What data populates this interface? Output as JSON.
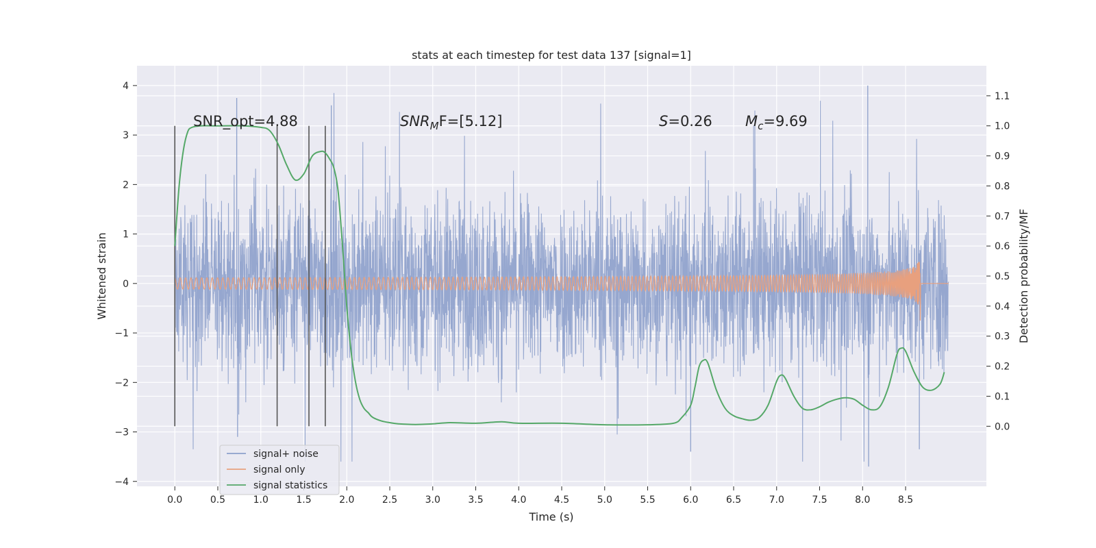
{
  "chart_data": {
    "type": "line",
    "title": "stats at each timestep for test data 137 [signal=1]",
    "xlabel": "Time (s)",
    "ylabel_left": "Whitened strain",
    "ylabel_right": "Detection probability/MF",
    "xlim": [
      -0.44,
      9.44
    ],
    "ylim_left": [
      -4.1,
      4.4
    ],
    "ylim_right": [
      -0.2,
      1.2
    ],
    "xticks": [
      0.0,
      0.5,
      1.0,
      1.5,
      2.0,
      2.5,
      3.0,
      3.5,
      4.0,
      4.5,
      5.0,
      5.5,
      6.0,
      6.5,
      7.0,
      7.5,
      8.0,
      8.5
    ],
    "xtick_labels": [
      "0.0",
      "0.5",
      "1.0",
      "1.5",
      "2.0",
      "2.5",
      "3.0",
      "3.5",
      "4.0",
      "4.5",
      "5.0",
      "5.5",
      "6.0",
      "6.5",
      "7.0",
      "7.5",
      "8.0",
      "8.5"
    ],
    "yticks_left": [
      -4,
      -3,
      -2,
      -1,
      0,
      1,
      2,
      3,
      4
    ],
    "ytick_labels_left": [
      "−4",
      "−3",
      "−2",
      "−1",
      "0",
      "1",
      "2",
      "3",
      "4"
    ],
    "yticks_right": [
      0.0,
      0.1,
      0.2,
      0.3,
      0.4,
      0.5,
      0.6,
      0.7,
      0.8,
      0.9,
      1.0,
      1.1
    ],
    "ytick_labels_right": [
      "0.0",
      "0.1",
      "0.2",
      "0.3",
      "0.4",
      "0.5",
      "0.6",
      "0.7",
      "0.8",
      "0.9",
      "1.0",
      "1.1"
    ],
    "grid": true,
    "legend_position": "lower-left",
    "legend": [
      "signal+ noise",
      "signal only",
      "signal statistics"
    ],
    "colors": {
      "noise": "#8da0cb",
      "signal": "#e8a07e",
      "stats": "#55a868",
      "vlines": "#555555",
      "background": "#eaeaf2",
      "grid": "#ffffff"
    },
    "annotations": {
      "snr_opt": "SNR_opt=4.88",
      "snr_mf_prefix": "SNR",
      "snr_mf_sub": "M",
      "snr_mf_suffix": "F=[5.12]",
      "s_label": "S",
      "s_value": "=0.26",
      "mc_label": "M",
      "mc_sub": "c",
      "mc_value": "=9.69"
    },
    "signal_plus_noise": {
      "x_range": [
        0.0,
        9.0
      ],
      "typical_amplitude": 1.35,
      "max_value": 4.0,
      "min_value": -3.7
    },
    "signal_only": {
      "x_range": [
        0.0,
        8.67
      ],
      "merger_time": 8.67,
      "peak_amplitude": 0.55
    },
    "vertical_lines": {
      "x": [
        0.0,
        1.19,
        1.56,
        1.75
      ],
      "y_range_right": [
        0.0,
        1.0
      ]
    },
    "signal_statistics": {
      "x": [
        0.0,
        0.05,
        0.1,
        0.15,
        0.2,
        0.3,
        0.5,
        0.8,
        1.0,
        1.1,
        1.2,
        1.3,
        1.4,
        1.5,
        1.6,
        1.7,
        1.75,
        1.8,
        1.85,
        1.9,
        1.95,
        2.0,
        2.05,
        2.1,
        2.15,
        2.2,
        2.25,
        2.3,
        2.4,
        2.5,
        2.6,
        2.8,
        3.0,
        3.2,
        3.5,
        3.8,
        4.0,
        4.5,
        5.0,
        5.5,
        5.8,
        5.9,
        6.0,
        6.05,
        6.1,
        6.15,
        6.2,
        6.3,
        6.4,
        6.5,
        6.6,
        6.7,
        6.8,
        6.9,
        7.0,
        7.05,
        7.1,
        7.2,
        7.3,
        7.4,
        7.5,
        7.6,
        7.7,
        7.8,
        7.9,
        8.0,
        8.1,
        8.2,
        8.3,
        8.4,
        8.45,
        8.5,
        8.6,
        8.7,
        8.8,
        8.9,
        8.95
      ],
      "y": [
        0.6,
        0.8,
        0.92,
        0.98,
        0.995,
        1.0,
        1.0,
        1.0,
        0.995,
        0.985,
        0.94,
        0.87,
        0.82,
        0.84,
        0.9,
        0.915,
        0.91,
        0.89,
        0.86,
        0.78,
        0.6,
        0.4,
        0.25,
        0.15,
        0.09,
        0.06,
        0.045,
        0.03,
        0.018,
        0.012,
        0.008,
        0.006,
        0.008,
        0.012,
        0.01,
        0.015,
        0.01,
        0.01,
        0.005,
        0.005,
        0.01,
        0.03,
        0.07,
        0.13,
        0.2,
        0.22,
        0.21,
        0.12,
        0.06,
        0.035,
        0.025,
        0.02,
        0.03,
        0.07,
        0.15,
        0.17,
        0.16,
        0.1,
        0.06,
        0.055,
        0.065,
        0.08,
        0.09,
        0.095,
        0.09,
        0.07,
        0.055,
        0.065,
        0.13,
        0.24,
        0.26,
        0.25,
        0.18,
        0.13,
        0.12,
        0.14,
        0.18
      ]
    }
  }
}
